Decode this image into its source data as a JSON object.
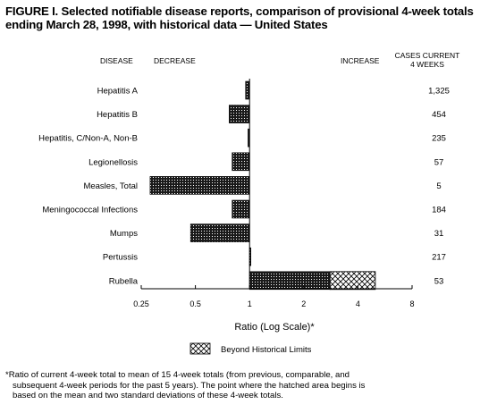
{
  "title_lines": [
    "FIGURE I. Selected notifiable disease reports, comparison of provisional 4-week totals",
    "ending March 28, 1998, with historical data — United States"
  ],
  "headers": {
    "disease": "DISEASE",
    "decrease": "DECREASE",
    "increase": "INCREASE",
    "cases_line1": "CASES CURRENT",
    "cases_line2": "4 WEEKS"
  },
  "legend": {
    "label": "Beyond Historical Limits"
  },
  "footnote_lines": [
    "*Ratio of current 4-week total to mean of 15 4-week totals (from previous, comparable, and",
    "subsequent 4-week periods for the past 5 years). The point where the hatched area begins is",
    "based on the mean and two standard deviations of these 4-week totals."
  ],
  "colors": {
    "bar_fill": "#1a1a1a",
    "hatch_fill": "#ffffff",
    "axis": "#000000"
  },
  "chart_data": {
    "type": "bar",
    "orientation": "horizontal",
    "xscale": "log2",
    "xlabel": "Ratio (Log Scale)*",
    "xlim": [
      0.25,
      8
    ],
    "xticks": [
      "0.25",
      "0.5",
      "1",
      "2",
      "4",
      "8"
    ],
    "baseline": 1,
    "categories": [
      "Hepatitis A",
      "Hepatitis B",
      "Hepatitis, C/Non-A, Non-B",
      "Legionellosis",
      "Measles, Total",
      "Meningococcal Infections",
      "Mumps",
      "Pertussis",
      "Rubella"
    ],
    "ratios": [
      0.95,
      0.77,
      0.98,
      0.8,
      0.28,
      0.8,
      0.47,
      1.01,
      5.0
    ],
    "beyond_limits_start": [
      null,
      null,
      null,
      null,
      null,
      null,
      null,
      null,
      2.8
    ],
    "cases_current_4_weeks": [
      "1,325",
      "454",
      "235",
      "57",
      "5",
      "184",
      "31",
      "217",
      "53"
    ]
  }
}
